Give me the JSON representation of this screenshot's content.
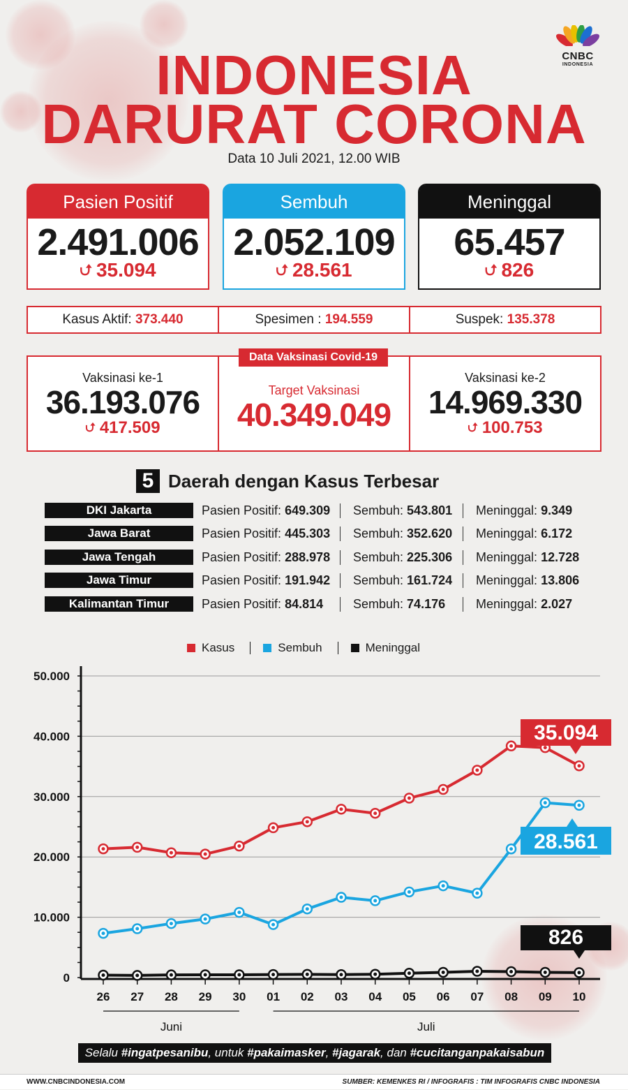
{
  "brand": {
    "name": "CNBC",
    "sub": "INDONESIA"
  },
  "title_line1": "INDONESIA",
  "title_line2": "DARURAT CORONA",
  "subtitle": "Data 10 Juli 2021, 12.00 WIB",
  "colors": {
    "red": "#d72a31",
    "blue": "#1aa5e0",
    "black": "#111111"
  },
  "cards": [
    {
      "label": "Pasien Positif",
      "value": "2.491.006",
      "delta": "35.094"
    },
    {
      "label": "Sembuh",
      "value": "2.052.109",
      "delta": "28.561"
    },
    {
      "label": "Meninggal",
      "value": "65.457",
      "delta": "826"
    }
  ],
  "stats": [
    {
      "label": "Kasus Aktif:",
      "value": "373.440"
    },
    {
      "label": "Spesimen :",
      "value": "194.559"
    },
    {
      "label": "Suspek:",
      "value": "135.378"
    }
  ],
  "vaccination": {
    "header": "Data Vaksinasi Covid-19",
    "first": {
      "label": "Vaksinasi ke-1",
      "value": "36.193.076",
      "delta": "417.509"
    },
    "target": {
      "label": "Target Vaksinasi",
      "value": "40.349.049"
    },
    "second": {
      "label": "Vaksinasi ke-2",
      "value": "14.969.330",
      "delta": "100.753"
    }
  },
  "regions_title_num": "5",
  "regions_title": "Daerah dengan Kasus Terbesar",
  "regions": [
    {
      "name": "DKI Jakarta",
      "positif": "Pasien Positif: ",
      "positif_v": "649.309",
      "sembuh": "Sembuh: ",
      "sembuh_v": "543.801",
      "meninggal": "Meninggal: ",
      "meninggal_v": "9.349"
    },
    {
      "name": "Jawa Barat",
      "positif": "Pasien Positif: ",
      "positif_v": "445.303",
      "sembuh": "Sembuh: ",
      "sembuh_v": "352.620",
      "meninggal": "Meninggal: ",
      "meninggal_v": "6.172"
    },
    {
      "name": "Jawa Tengah",
      "positif": "Pasien Positif: ",
      "positif_v": "288.978",
      "sembuh": "Sembuh: ",
      "sembuh_v": "225.306",
      "meninggal": "Meninggal: ",
      "meninggal_v": "12.728"
    },
    {
      "name": "Jawa Timur",
      "positif": "Pasien Positif: ",
      "positif_v": "191.942",
      "sembuh": "Sembuh: ",
      "sembuh_v": "161.724",
      "meninggal": "Meninggal: ",
      "meninggal_v": "13.806"
    },
    {
      "name": "Kalimantan Timur",
      "positif": "Pasien Positif: ",
      "positif_v": "84.814",
      "sembuh": "Sembuh: ",
      "sembuh_v": "74.176",
      "meninggal": "Meninggal: ",
      "meninggal_v": "2.027"
    }
  ],
  "chart_data": {
    "type": "line",
    "categories": [
      "26",
      "27",
      "28",
      "29",
      "30",
      "01",
      "02",
      "03",
      "04",
      "05",
      "06",
      "07",
      "08",
      "09",
      "10"
    ],
    "group_labels": [
      "Juni",
      "Juli"
    ],
    "series": [
      {
        "name": "Kasus",
        "color": "#d72a31",
        "values": [
          21342,
          21602,
          20694,
          20467,
          21807,
          24836,
          25830,
          27913,
          27233,
          29745,
          31189,
          34379,
          38391,
          38124,
          35094
        ],
        "callout": "35.094"
      },
      {
        "name": "Sembuh",
        "color": "#1aa5e0",
        "values": [
          7333,
          8097,
          8962,
          9703,
          10807,
          8787,
          11378,
          13303,
          12740,
          14197,
          15212,
          13989,
          21327,
          28972,
          28561
        ],
        "callout": "28.561"
      },
      {
        "name": "Meninggal",
        "color": "#111111",
        "values": [
          409,
          355,
          443,
          467,
          467,
          504,
          539,
          494,
          555,
          728,
          871,
          1040,
          982,
          871,
          826
        ],
        "callout": "826"
      }
    ],
    "y_ticks": [
      "0",
      "10.000",
      "20.000",
      "30.000",
      "40.000",
      "50.000"
    ],
    "ylim": [
      0,
      50000
    ]
  },
  "slogan_parts": [
    {
      "t": "Selalu ",
      "b": false
    },
    {
      "t": "#ingatpesanibu",
      "b": true
    },
    {
      "t": ", untuk ",
      "b": false
    },
    {
      "t": "#pakaimasker",
      "b": true
    },
    {
      "t": ", ",
      "b": false
    },
    {
      "t": "#jagarak",
      "b": true
    },
    {
      "t": ", dan ",
      "b": false
    },
    {
      "t": "#cucitanganpakaisabun",
      "b": true
    }
  ],
  "footer_left": "WWW.CNBCINDONESIA.COM",
  "footer_right": "SUMBER: KEMENKES RI / INFOGRAFIS : TIM INFOGRAFIS CNBC INDONESIA"
}
